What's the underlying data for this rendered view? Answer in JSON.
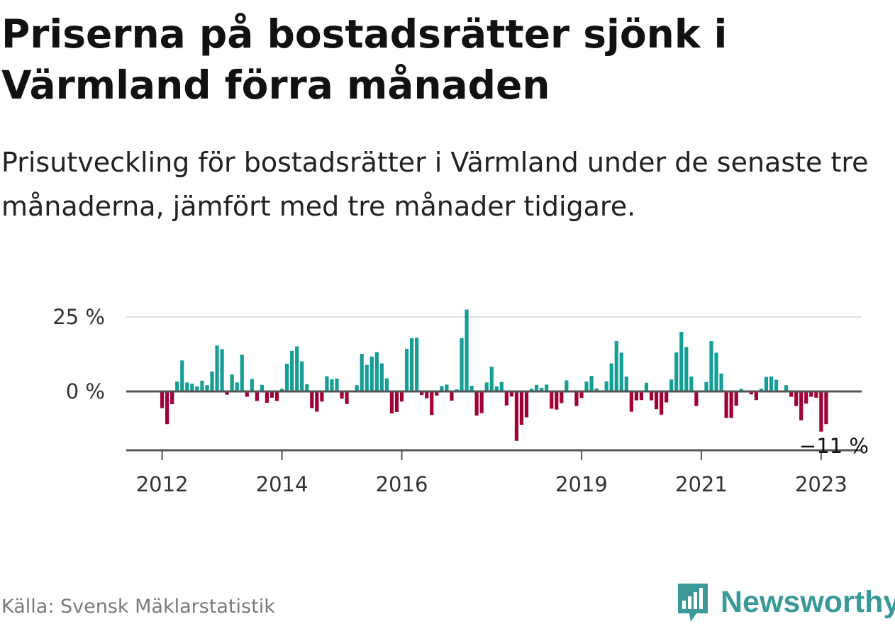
{
  "title": "Priserna på bostadsrätter sjönk i Värmland förra månaden",
  "subtitle": "Prisutveckling för bostadsrätter i Värmland under de senaste tre månaderna, jämfört med tre månader tidigare.",
  "source": "Källa: Svensk Mäklarstatistik",
  "brand": {
    "name": "Newsworthy",
    "icon": "newsworthy-logo-icon",
    "color": "#3a9a9a"
  },
  "colors": {
    "positive": "#159e96",
    "negative": "#a0003a",
    "grid": "#dddddd",
    "zero_line": "#555555"
  },
  "chart_data": {
    "type": "bar",
    "title": "",
    "xlabel": "",
    "ylabel": "",
    "ylim": [
      -20,
      27
    ],
    "y_ticks": [
      {
        "value": 0,
        "label": "0 %"
      },
      {
        "value": 25,
        "label": "25 %"
      }
    ],
    "x_ticks": [
      {
        "label": "2012",
        "index": 0
      },
      {
        "label": "2014",
        "index": 24
      },
      {
        "label": "2016",
        "index": 48
      },
      {
        "label": "2019",
        "index": 84
      },
      {
        "label": "2021",
        "index": 108
      },
      {
        "label": "2023",
        "index": 132
      }
    ],
    "annotation": {
      "label": "−11 %",
      "index": 133
    },
    "series": [
      {
        "values": [
          -5.6,
          -11,
          -4.3,
          3.3,
          10.4,
          3.0,
          2.6,
          1.7,
          3.6,
          2.1,
          6.7,
          15.4,
          14.2,
          -1.1,
          5.7,
          3.0,
          12.3,
          -1.8,
          4.2,
          -3.2,
          2.2,
          -3.8,
          -2.1,
          -3.2,
          0.9,
          9.3,
          13.6,
          15.1,
          10.1,
          2.4,
          -5.6,
          -6.8,
          -3.4,
          5.1,
          4.1,
          4.3,
          -2.4,
          -4.2,
          0,
          2.1,
          12.6,
          8.9,
          11.7,
          13.2,
          9.4,
          4.4,
          -7.4,
          -6.9,
          -3.4,
          14.3,
          17.9,
          18.0,
          -1.2,
          -2.3,
          -7.9,
          -1.4,
          1.8,
          2.3,
          -3.1,
          0.7,
          17.9,
          27.5,
          1.9,
          -8.1,
          -7.3,
          3.0,
          8.3,
          1.7,
          3.2,
          -4.7,
          -1.7,
          -16.6,
          -11.2,
          -8.7,
          0.9,
          2.2,
          1.2,
          2.3,
          -5.8,
          -6.1,
          -3.9,
          3.7,
          0,
          -4.9,
          -2.2,
          3.3,
          5.2,
          1.0,
          0,
          3.4,
          9.4,
          16.9,
          13.0,
          5.0,
          -6.8,
          -3.0,
          -2.9,
          2.9,
          -3.0,
          -6.0,
          -7.8,
          -3.7,
          4.0,
          13.1,
          20.0,
          14.9,
          5.0,
          -4.9,
          0,
          3.2,
          16.9,
          13.0,
          6.0,
          -8.9,
          -8.9,
          -4.8,
          0.9,
          0,
          -1.0,
          -2.9,
          0.9,
          4.9,
          5.0,
          3.9,
          0,
          2.1,
          -1.8,
          -4.9,
          -9.7,
          -4.1,
          -1.8,
          -2.1,
          -13.5,
          -11
        ]
      }
    ]
  }
}
